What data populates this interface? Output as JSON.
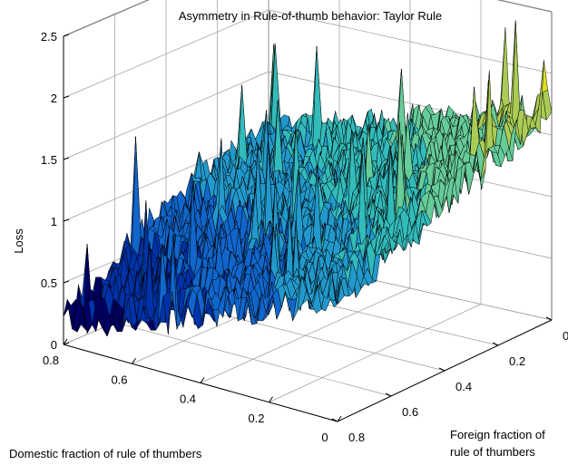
{
  "chart_data": {
    "type": "surface",
    "title": "Asymmetry in Rule-of-thumb behavior: Taylor Rule",
    "xlabel": "Domestic fraction of rule of thumbers",
    "ylabel": "Foreign fraction of rule of thumbers",
    "zlabel": "Loss",
    "xlim": [
      0,
      0.8
    ],
    "ylim": [
      0,
      0.8
    ],
    "zlim": [
      0,
      2.5
    ],
    "x_ticks": [
      {
        "value": 0.8,
        "label": "0.8"
      },
      {
        "value": 0.6,
        "label": "0.6"
      },
      {
        "value": 0.4,
        "label": "0.4"
      },
      {
        "value": 0.2,
        "label": "0.2"
      },
      {
        "value": 0,
        "label": "0"
      }
    ],
    "y_ticks": [
      {
        "value": 0,
        "label": "0"
      },
      {
        "value": 0.2,
        "label": "0.2"
      },
      {
        "value": 0.4,
        "label": "0.4"
      },
      {
        "value": 0.6,
        "label": "0.6"
      },
      {
        "value": 0.8,
        "label": "0.8"
      }
    ],
    "z_ticks": [
      {
        "value": 0,
        "label": "0"
      },
      {
        "value": 0.5,
        "label": "0.5"
      },
      {
        "value": 1,
        "label": "1"
      },
      {
        "value": 1.5,
        "label": "1.5"
      },
      {
        "value": 2,
        "label": "2"
      },
      {
        "value": 2.5,
        "label": "2.5"
      }
    ],
    "grid": true,
    "colormap": [
      "#000066",
      "#0033aa",
      "#1166cc",
      "#2299cc",
      "#33bbbb",
      "#66cc99",
      "#aacc55",
      "#dddd22"
    ],
    "edge_color": "#000000",
    "grid_points": [
      [
        1.0,
        1.1,
        1.18,
        1.26,
        1.34,
        1.42,
        1.52,
        1.62,
        1.72
      ],
      [
        0.95,
        1.02,
        1.1,
        1.18,
        1.26,
        1.34,
        1.44,
        1.54,
        1.64
      ],
      [
        0.9,
        0.96,
        1.02,
        1.1,
        1.18,
        1.26,
        1.36,
        1.46,
        1.56
      ],
      [
        0.82,
        0.88,
        0.94,
        1.0,
        1.08,
        1.16,
        1.26,
        1.36,
        1.46
      ],
      [
        0.72,
        0.76,
        0.82,
        0.88,
        0.96,
        1.04,
        1.14,
        1.26,
        1.36
      ],
      [
        0.6,
        0.64,
        0.7,
        0.76,
        0.84,
        0.92,
        1.04,
        1.16,
        1.28
      ],
      [
        0.46,
        0.52,
        0.58,
        0.64,
        0.72,
        0.82,
        0.94,
        1.06,
        1.2
      ],
      [
        0.32,
        0.4,
        0.48,
        0.56,
        0.64,
        0.74,
        0.86,
        0.98,
        1.1
      ],
      [
        0.18,
        0.28,
        0.38,
        0.48,
        0.58,
        0.68,
        0.8,
        0.92,
        1.06
      ]
    ]
  }
}
